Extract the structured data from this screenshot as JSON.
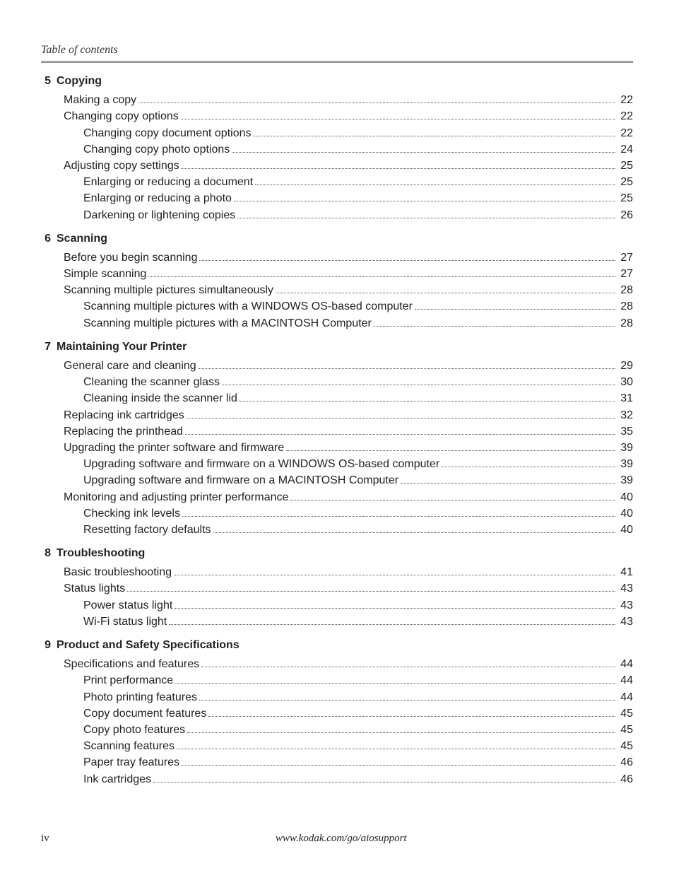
{
  "header": {
    "title": "Table of contents"
  },
  "colors": {
    "text": "#222222",
    "rule_top": "#555555",
    "rule_bottom": "#888888",
    "dots": "#555555",
    "background": "#ffffff"
  },
  "typography": {
    "header_font": "Times New Roman, italic",
    "body_font": "Arial",
    "body_fontsize_pt": 12,
    "section_head_weight": "bold",
    "footer_font": "Times New Roman"
  },
  "sections": [
    {
      "number": "5",
      "title": "Copying",
      "entries": [
        {
          "level": 1,
          "label": "Making a copy",
          "page": "22"
        },
        {
          "level": 1,
          "label": "Changing copy options",
          "page": "22"
        },
        {
          "level": 2,
          "label": "Changing copy document options",
          "page": "22"
        },
        {
          "level": 2,
          "label": "Changing copy photo options",
          "page": "24"
        },
        {
          "level": 1,
          "label": "Adjusting copy settings",
          "page": "25"
        },
        {
          "level": 2,
          "label": "Enlarging or reducing a document",
          "page": "25"
        },
        {
          "level": 2,
          "label": "Enlarging or reducing a photo",
          "page": "25"
        },
        {
          "level": 2,
          "label": "Darkening or lightening copies",
          "page": "26"
        }
      ]
    },
    {
      "number": "6",
      "title": "Scanning",
      "entries": [
        {
          "level": 1,
          "label": "Before you begin scanning",
          "page": "27"
        },
        {
          "level": 1,
          "label": "Simple scanning",
          "page": "27"
        },
        {
          "level": 1,
          "label": "Scanning multiple pictures simultaneously",
          "page": "28"
        },
        {
          "level": 2,
          "label": "Scanning multiple pictures with a WINDOWS OS-based computer",
          "page": "28"
        },
        {
          "level": 2,
          "label": "Scanning multiple pictures with a MACINTOSH Computer",
          "page": "28"
        }
      ]
    },
    {
      "number": "7",
      "title": "Maintaining Your Printer",
      "entries": [
        {
          "level": 1,
          "label": "General care and cleaning",
          "page": "29"
        },
        {
          "level": 2,
          "label": "Cleaning the scanner glass",
          "page": "30"
        },
        {
          "level": 2,
          "label": "Cleaning inside the scanner lid",
          "page": "31"
        },
        {
          "level": 1,
          "label": "Replacing ink cartridges",
          "page": "32"
        },
        {
          "level": 1,
          "label": "Replacing the printhead",
          "page": "35"
        },
        {
          "level": 1,
          "label": "Upgrading the printer software and firmware",
          "page": "39"
        },
        {
          "level": 2,
          "label": "Upgrading software and firmware on a WINDOWS OS-based computer",
          "page": "39"
        },
        {
          "level": 2,
          "label": "Upgrading software and firmware on a MACINTOSH Computer",
          "page": "39"
        },
        {
          "level": 1,
          "label": "Monitoring and adjusting printer performance",
          "page": "40"
        },
        {
          "level": 2,
          "label": "Checking ink levels",
          "page": "40"
        },
        {
          "level": 2,
          "label": "Resetting factory defaults",
          "page": "40"
        }
      ]
    },
    {
      "number": "8",
      "title": "Troubleshooting",
      "entries": [
        {
          "level": 1,
          "label": "Basic troubleshooting",
          "page": "41"
        },
        {
          "level": 1,
          "label": "Status lights",
          "page": "43"
        },
        {
          "level": 2,
          "label": "Power status light",
          "page": "43"
        },
        {
          "level": 2,
          "label": "Wi-Fi status light",
          "page": "43"
        }
      ]
    },
    {
      "number": "9",
      "title": "Product and Safety Specifications",
      "entries": [
        {
          "level": 1,
          "label": "Specifications and features",
          "page": "44"
        },
        {
          "level": 2,
          "label": "Print performance",
          "page": "44"
        },
        {
          "level": 2,
          "label": "Photo printing features",
          "page": "44"
        },
        {
          "level": 2,
          "label": "Copy document features",
          "page": "45"
        },
        {
          "level": 2,
          "label": "Copy photo features",
          "page": "45"
        },
        {
          "level": 2,
          "label": "Scanning features",
          "page": "45"
        },
        {
          "level": 2,
          "label": "Paper tray features",
          "page": "46"
        },
        {
          "level": 2,
          "label": "Ink cartridges",
          "page": "46"
        }
      ]
    }
  ],
  "footer": {
    "page_number": "iv",
    "url": "www.kodak.com/go/aiosupport"
  }
}
